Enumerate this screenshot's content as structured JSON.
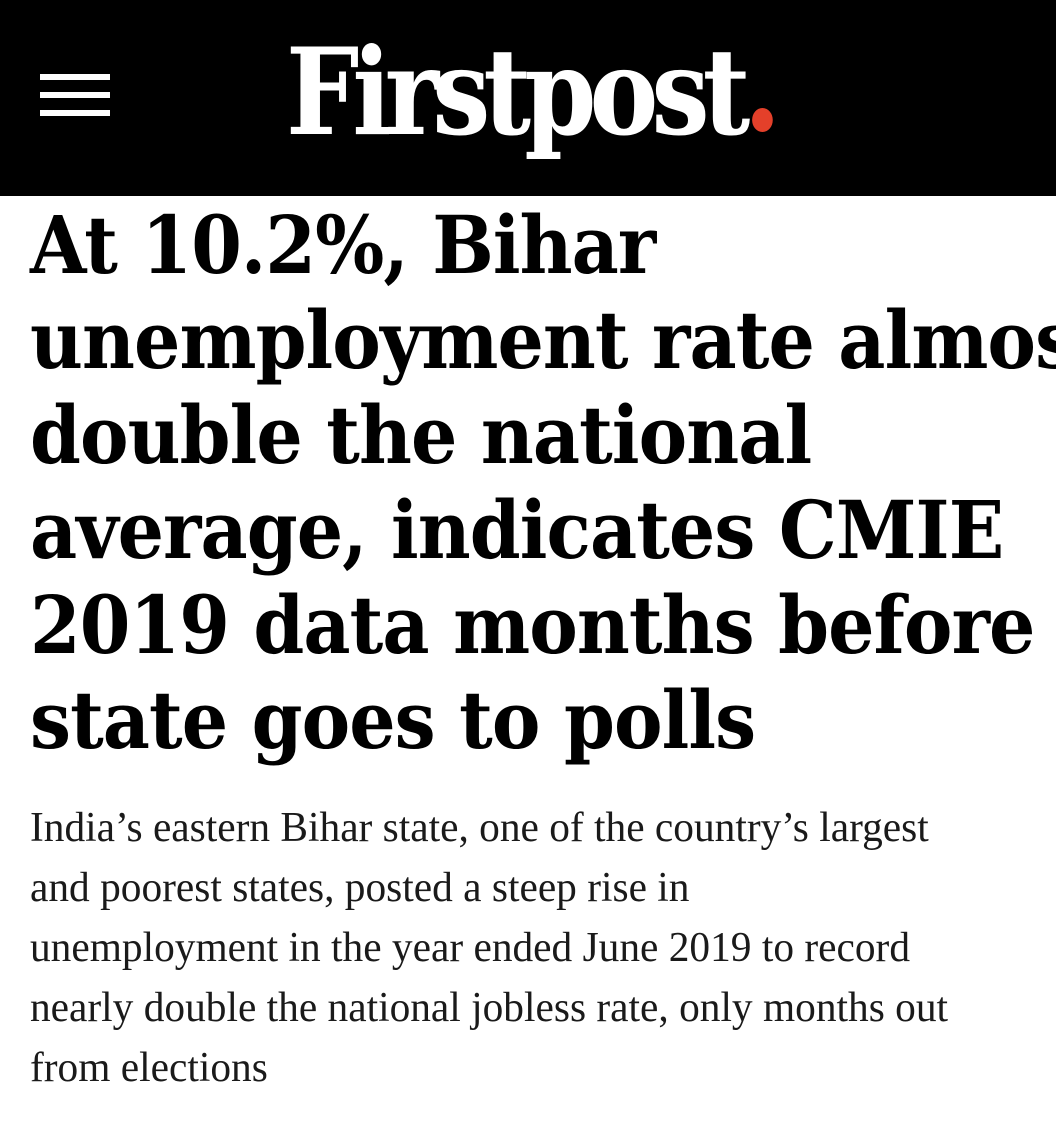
{
  "header": {
    "logo_text": "Firstpost",
    "logo_dot_color": "#e4402a",
    "background": "#000000",
    "menu_icon": "hamburger-menu-icon"
  },
  "article": {
    "headline_lines": [
      "At 10.2%, Bihar",
      "unemployment rate almost",
      "double the national",
      "average, indicates CMIE",
      "2019 data months before",
      "state goes to polls"
    ],
    "summary_lines": [
      "India’s eastern Bihar state, one of the country’s largest",
      "and poorest states, posted a steep rise in",
      "unemployment in the year ended June 2019 to record",
      "nearly double the national jobless rate, only months out",
      "from elections"
    ]
  }
}
